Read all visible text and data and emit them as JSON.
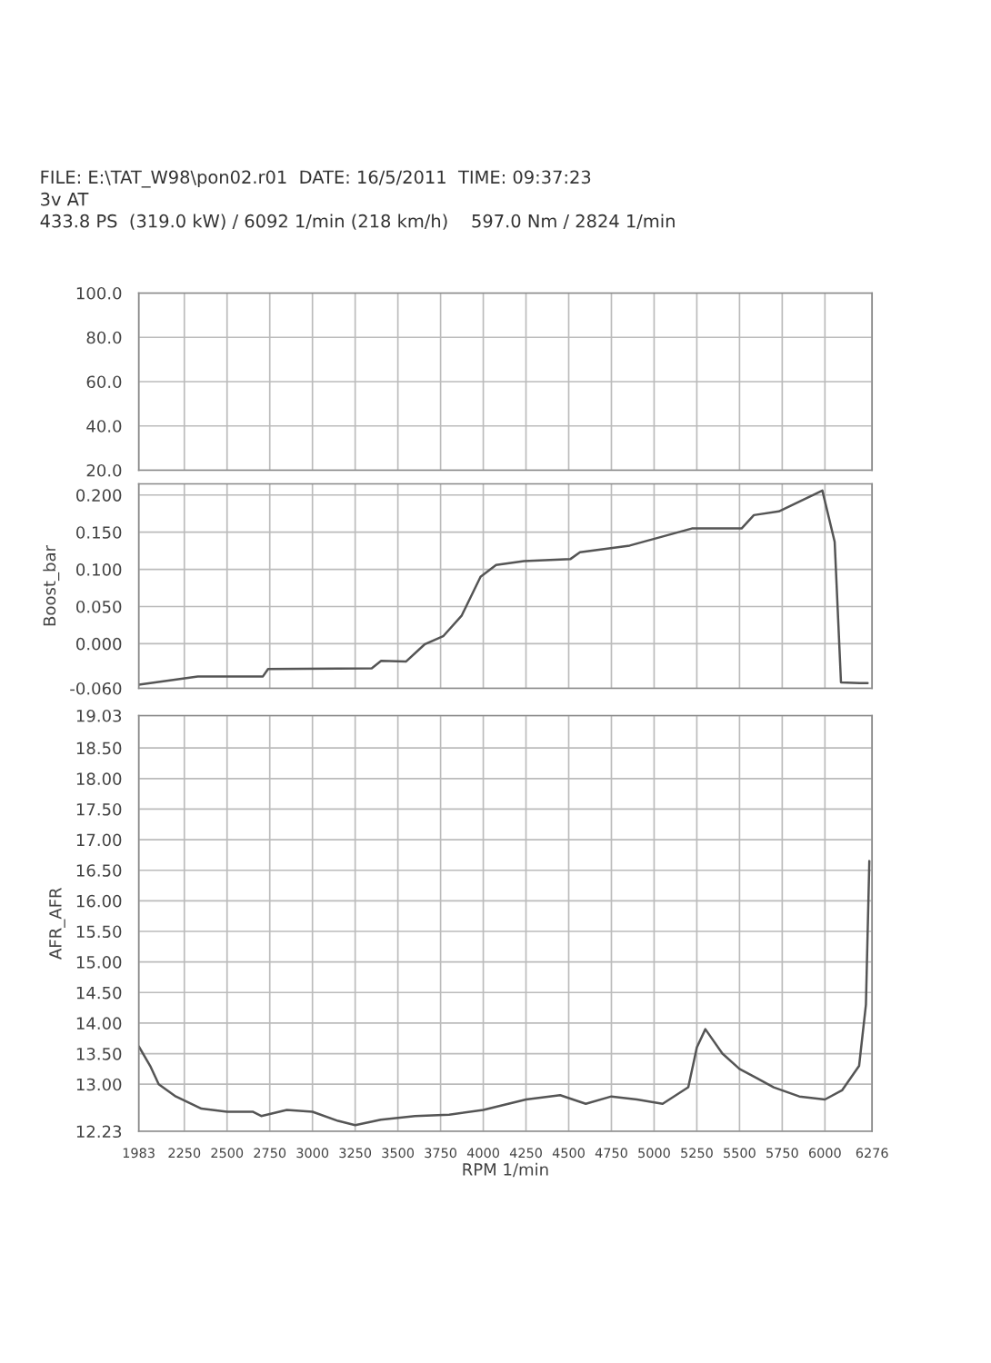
{
  "chart_data": [
    {
      "type": "line",
      "annotations": [
        "FILE: E:\\TAT_W98\\pon02.r01  DATE: 16/5/2011  TIME: 09:37:23",
        "3v AT",
        "433.8 PS  (319.0 kW) / 6092 1/min (218 km/h)    597.0 Nm / 2824 1/min"
      ],
      "xlim": [
        1983,
        6276
      ],
      "ylim": [
        20,
        100
      ],
      "yticks": [
        {
          "value": 20,
          "label": "20.0"
        },
        {
          "value": 40,
          "label": "40.0"
        },
        {
          "value": 60,
          "label": "60.0"
        },
        {
          "value": 80,
          "label": "80.0"
        },
        {
          "value": 100,
          "label": "100.0"
        }
      ],
      "grid": true,
      "tick_labels": "y"
    },
    {
      "type": "line",
      "ylabel": "Boost_bar",
      "xlim": [
        1983,
        6276
      ],
      "ylim": [
        -0.06,
        0.215
      ],
      "yticks": [
        {
          "value": -0.06,
          "label": "-0.060"
        },
        {
          "value": 0,
          "label": "0.000"
        },
        {
          "value": 0.05,
          "label": "0.050"
        },
        {
          "value": 0.1,
          "label": "0.100"
        },
        {
          "value": 0.15,
          "label": "0.150"
        },
        {
          "value": 0.2,
          "label": "0.200"
        }
      ],
      "grid": true,
      "tick_labels": "y",
      "series": [
        {
          "color": "#555555",
          "x": [
            1983,
            2329,
            2710,
            2740,
            3347,
            3402,
            3547,
            3656,
            3765,
            3874,
            3984,
            4075,
            4238,
            4511,
            4566,
            4857,
            5221,
            5512,
            5584,
            5730,
            5985,
            6057,
            6094,
            6203,
            6250
          ],
          "values": [
            -0.055,
            -0.044,
            -0.044,
            -0.034,
            -0.033,
            -0.023,
            -0.024,
            -0.001,
            0.01,
            0.038,
            0.09,
            0.106,
            0.111,
            0.114,
            0.123,
            0.132,
            0.155,
            0.155,
            0.173,
            0.178,
            0.206,
            0.137,
            -0.052,
            -0.053,
            -0.053
          ]
        }
      ]
    },
    {
      "type": "line",
      "ylabel": "AFR_AFR",
      "xlabel": "RPM 1/min",
      "xlim": [
        1983,
        6276
      ],
      "xticks": [
        1983,
        2250,
        2500,
        2750,
        3000,
        3250,
        3500,
        3750,
        4000,
        4250,
        4500,
        4750,
        5000,
        5250,
        5500,
        5750,
        6000,
        6276
      ],
      "ylim": [
        12.23,
        19.03
      ],
      "yticks": [
        12.23,
        {
          "value": 13,
          "label": "13.00"
        },
        {
          "value": 13.5,
          "label": "13.50"
        },
        {
          "value": 14,
          "label": "14.00"
        },
        {
          "value": 14.5,
          "label": "14.50"
        },
        {
          "value": 15,
          "label": "15.00"
        },
        {
          "value": 15.5,
          "label": "15.50"
        },
        {
          "value": 16,
          "label": "16.00"
        },
        {
          "value": 16.5,
          "label": "16.50"
        },
        {
          "value": 17,
          "label": "17.00"
        },
        {
          "value": 17.5,
          "label": "17.50"
        },
        {
          "value": 18,
          "label": "18.00"
        },
        {
          "value": 18.5,
          "label": "18.50"
        },
        19.03
      ],
      "grid": true,
      "series": [
        {
          "color": "#555555",
          "x": [
            1983,
            2050,
            2100,
            2200,
            2350,
            2500,
            2650,
            2700,
            2850,
            3000,
            3150,
            3250,
            3400,
            3600,
            3800,
            4000,
            4250,
            4450,
            4600,
            4750,
            4900,
            5050,
            5200,
            5250,
            5300,
            5400,
            5500,
            5600,
            5700,
            5850,
            6000,
            6100,
            6200,
            6240,
            6260
          ],
          "values": [
            13.62,
            13.3,
            13.0,
            12.8,
            12.6,
            12.55,
            12.55,
            12.48,
            12.58,
            12.55,
            12.4,
            12.33,
            12.42,
            12.48,
            12.5,
            12.58,
            12.75,
            12.82,
            12.68,
            12.8,
            12.75,
            12.68,
            12.95,
            13.6,
            13.9,
            13.5,
            13.25,
            13.1,
            12.95,
            12.8,
            12.75,
            12.9,
            13.3,
            14.3,
            16.65
          ]
        }
      ]
    }
  ]
}
